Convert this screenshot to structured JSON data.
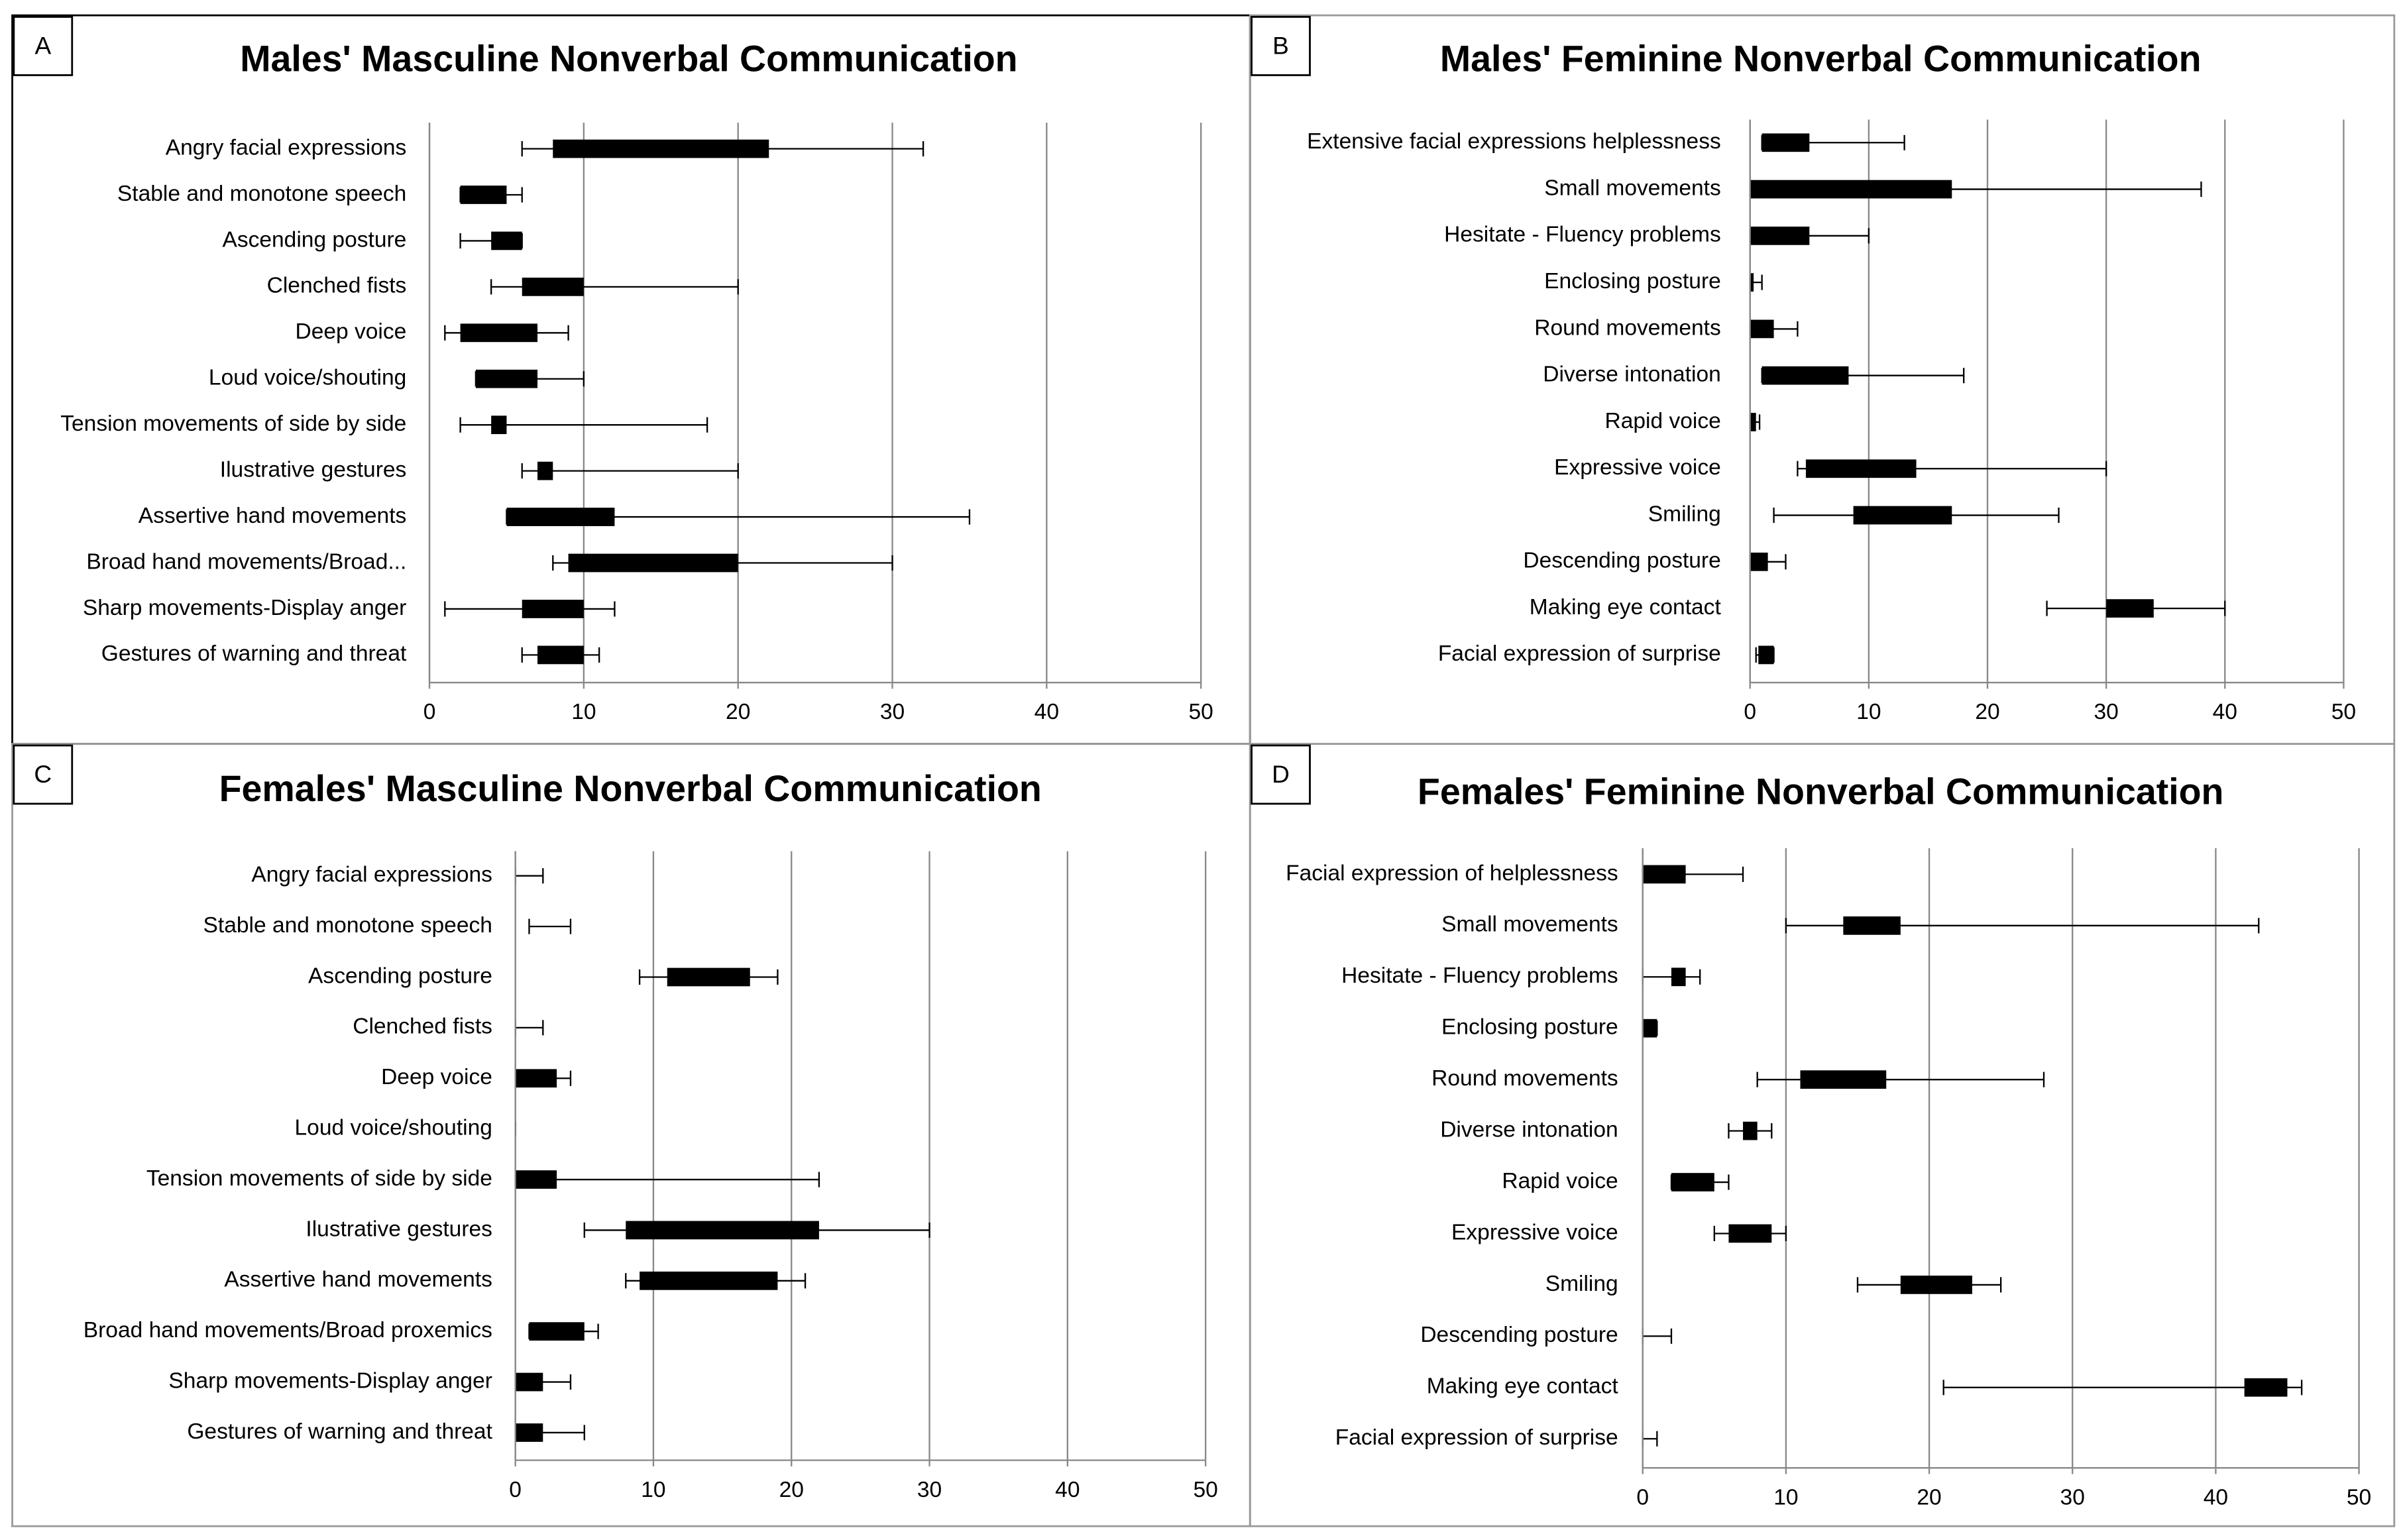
{
  "chart_data": [
    {
      "type": "box",
      "panel_label": "A",
      "title": "Males' Masculine Nonverbal Communication",
      "categories": [
        "Angry facial expressions",
        "Stable and monotone speech",
        "Ascending posture",
        "Clenched fists",
        "Deep voice",
        "Loud voice/shouting",
        "Tension movements of side by side",
        "Ilustrative gestures ",
        "Assertive hand movements",
        "Broad hand movements/Broad...",
        "Sharp movements-Display anger ",
        "Gestures of warning and threat"
      ],
      "min": [
        6,
        2,
        2,
        4,
        1,
        3,
        2,
        6,
        5,
        8,
        1,
        6
      ],
      "q1": [
        8,
        2,
        4,
        6,
        2,
        3,
        4,
        7,
        5,
        9,
        6,
        7
      ],
      "q3": [
        22,
        5,
        6,
        10,
        7,
        7,
        5,
        8,
        12,
        20,
        10,
        10
      ],
      "max": [
        32,
        6,
        6,
        20,
        9,
        10,
        18,
        20,
        35,
        30,
        12,
        11
      ],
      "color": "#000000",
      "xlim": [
        0,
        50
      ],
      "xticks": [
        0,
        10,
        20,
        30,
        40,
        50
      ],
      "grid": true
    },
    {
      "type": "box",
      "panel_label": "B",
      "title": "Males' Feminine Nonverbal Communication",
      "categories": [
        "Extensive facial expressions helplessness",
        "Small movements",
        "Hesitate - Fluency problems",
        "Enclosing posture",
        "Round movements",
        "Diverse intonation",
        "Rapid voice",
        "Expressive voice",
        "Smiling",
        "Descending posture",
        "Making eye contact",
        "Facial expression of surprise"
      ],
      "min": [
        1,
        0,
        0,
        0,
        0,
        1,
        0,
        4,
        2,
        0,
        25,
        0.5
      ],
      "q1": [
        1,
        0,
        0,
        0,
        0,
        1,
        0,
        4.7,
        8.7,
        0,
        30,
        0.7
      ],
      "q3": [
        5,
        17,
        5,
        0.3,
        2,
        8.3,
        0.5,
        14,
        17,
        1.5,
        34,
        2
      ],
      "max": [
        13,
        38,
        10,
        1,
        4,
        18,
        0.8,
        30,
        26,
        3,
        40,
        2
      ],
      "color": "#000000",
      "xlim": [
        0,
        50
      ],
      "xticks": [
        0,
        10,
        20,
        30,
        40,
        50
      ],
      "grid": true
    },
    {
      "type": "box",
      "panel_label": "C",
      "title": "Females' Masculine Nonverbal Communication",
      "categories": [
        "Angry facial expressions",
        "Stable and monotone speech",
        "Ascending posture",
        "Clenched fists",
        "Deep voice",
        "Loud voice/shouting",
        "Tension movements of side by side",
        "Ilustrative gestures",
        "Assertive hand movements",
        "Broad hand movements/Broad proxemics",
        "Sharp movements-Display anger",
        "Gestures of warning and threat"
      ],
      "min": [
        0,
        1,
        9,
        0,
        0,
        0,
        0,
        5,
        8,
        1,
        0,
        0
      ],
      "q1": [
        0,
        1,
        11,
        0,
        0,
        0,
        0,
        8,
        9,
        1,
        0,
        0
      ],
      "q3": [
        0,
        1,
        17,
        0,
        3,
        0,
        3,
        22,
        19,
        5,
        2,
        2
      ],
      "max": [
        2,
        4,
        19,
        2,
        4,
        0,
        22,
        30,
        21,
        6,
        4,
        5
      ],
      "color": "#000000",
      "xlim": [
        0,
        50
      ],
      "xticks": [
        0,
        10,
        20,
        30,
        40,
        50
      ],
      "grid": true
    },
    {
      "type": "box",
      "panel_label": "D",
      "title": "Females' Feminine Nonverbal Communication",
      "categories": [
        "Facial expression of helplessness",
        "Small movements",
        "Hesitate - Fluency problems",
        "Enclosing posture",
        "Round movements",
        "Diverse intonation",
        "Rapid voice",
        "Expressive voice",
        "Smiling",
        "Descending posture",
        "Making eye contact",
        "Facial expression of surprise"
      ],
      "min": [
        0,
        10,
        0,
        0,
        8,
        6,
        2,
        5,
        15,
        0,
        21,
        0
      ],
      "q1": [
        0,
        14,
        2,
        0,
        11,
        7,
        2,
        6,
        18,
        0,
        42,
        0
      ],
      "q3": [
        3,
        18,
        3,
        1,
        17,
        8,
        5,
        9,
        23,
        0,
        45,
        0
      ],
      "max": [
        7,
        43,
        4,
        1,
        28,
        9,
        6,
        10,
        25,
        2,
        46,
        1
      ],
      "color": "#000000",
      "xlim": [
        0,
        50
      ],
      "xticks": [
        0,
        10,
        20,
        30,
        40,
        50
      ],
      "grid": true
    }
  ]
}
